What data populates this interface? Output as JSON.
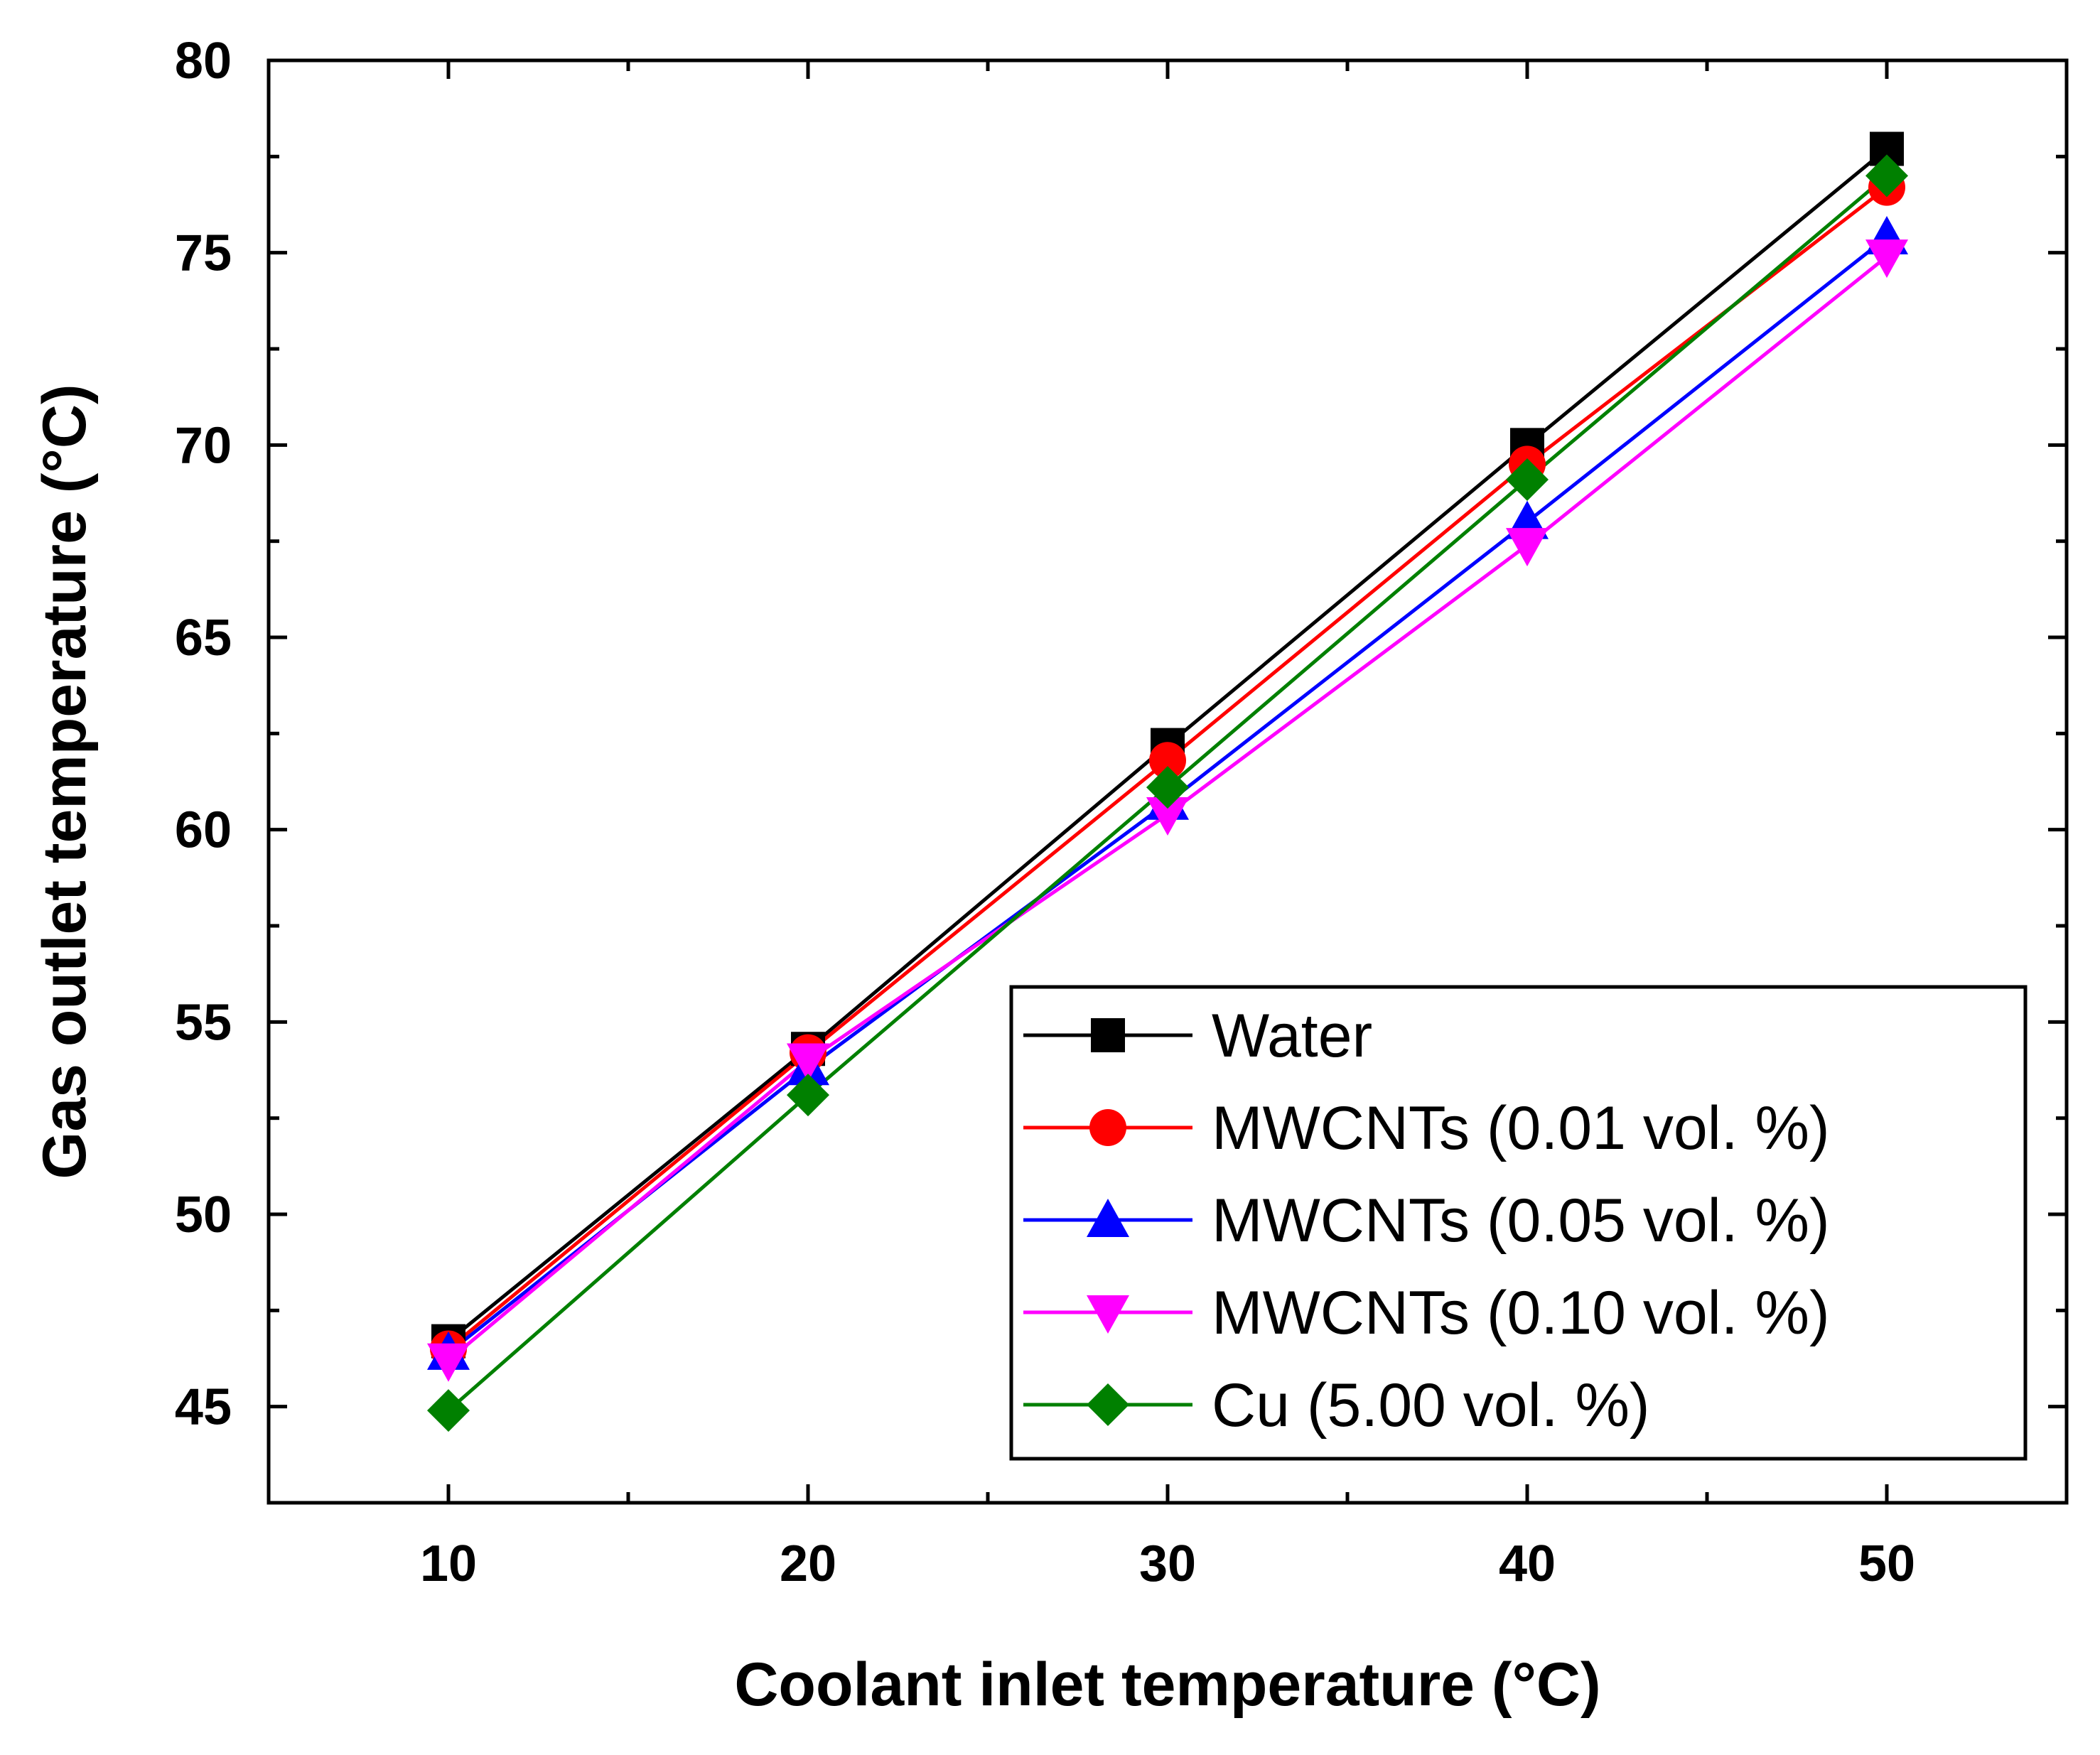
{
  "chart_data": {
    "type": "line",
    "title": "",
    "xlabel": "Coolant inlet temperature (°C)",
    "ylabel": "Gas outlet temperature (°C)",
    "xlim": [
      5,
      55
    ],
    "ylim": [
      42.5,
      80
    ],
    "xticks": [
      10,
      20,
      30,
      40,
      50
    ],
    "xtick_labels": [
      "10",
      "20",
      "30",
      "40",
      "50"
    ],
    "yticks": [
      45,
      50,
      55,
      60,
      65,
      70,
      75,
      80
    ],
    "ytick_labels": [
      "45",
      "50",
      "55",
      "60",
      "65",
      "70",
      "75",
      "80"
    ],
    "grid": false,
    "legend_position": "bottom-right",
    "x": [
      10,
      20,
      30,
      40,
      50
    ],
    "series": [
      {
        "name": "Water",
        "values": [
          46.7,
          54.3,
          62.2,
          70.0,
          77.7
        ],
        "color": "#000000",
        "marker": "square"
      },
      {
        "name": "MWCNTs (0.01 vol. %)",
        "values": [
          46.5,
          54.2,
          61.8,
          69.5,
          76.7
        ],
        "color": "#ff0000",
        "marker": "circle"
      },
      {
        "name": "MWCNTs (0.05 vol. %)",
        "values": [
          46.4,
          53.8,
          60.7,
          68.0,
          75.4
        ],
        "color": "#0000ff",
        "marker": "triangle-up"
      },
      {
        "name": "MWCNTs (0.10 vol. %)",
        "values": [
          46.2,
          54.0,
          60.4,
          67.4,
          74.9
        ],
        "color": "#ff00ff",
        "marker": "triangle-down"
      },
      {
        "name": "Cu (5.00 vol. %)",
        "values": [
          44.9,
          53.1,
          61.1,
          69.1,
          77.0
        ],
        "color": "#008000",
        "marker": "diamond"
      }
    ]
  }
}
